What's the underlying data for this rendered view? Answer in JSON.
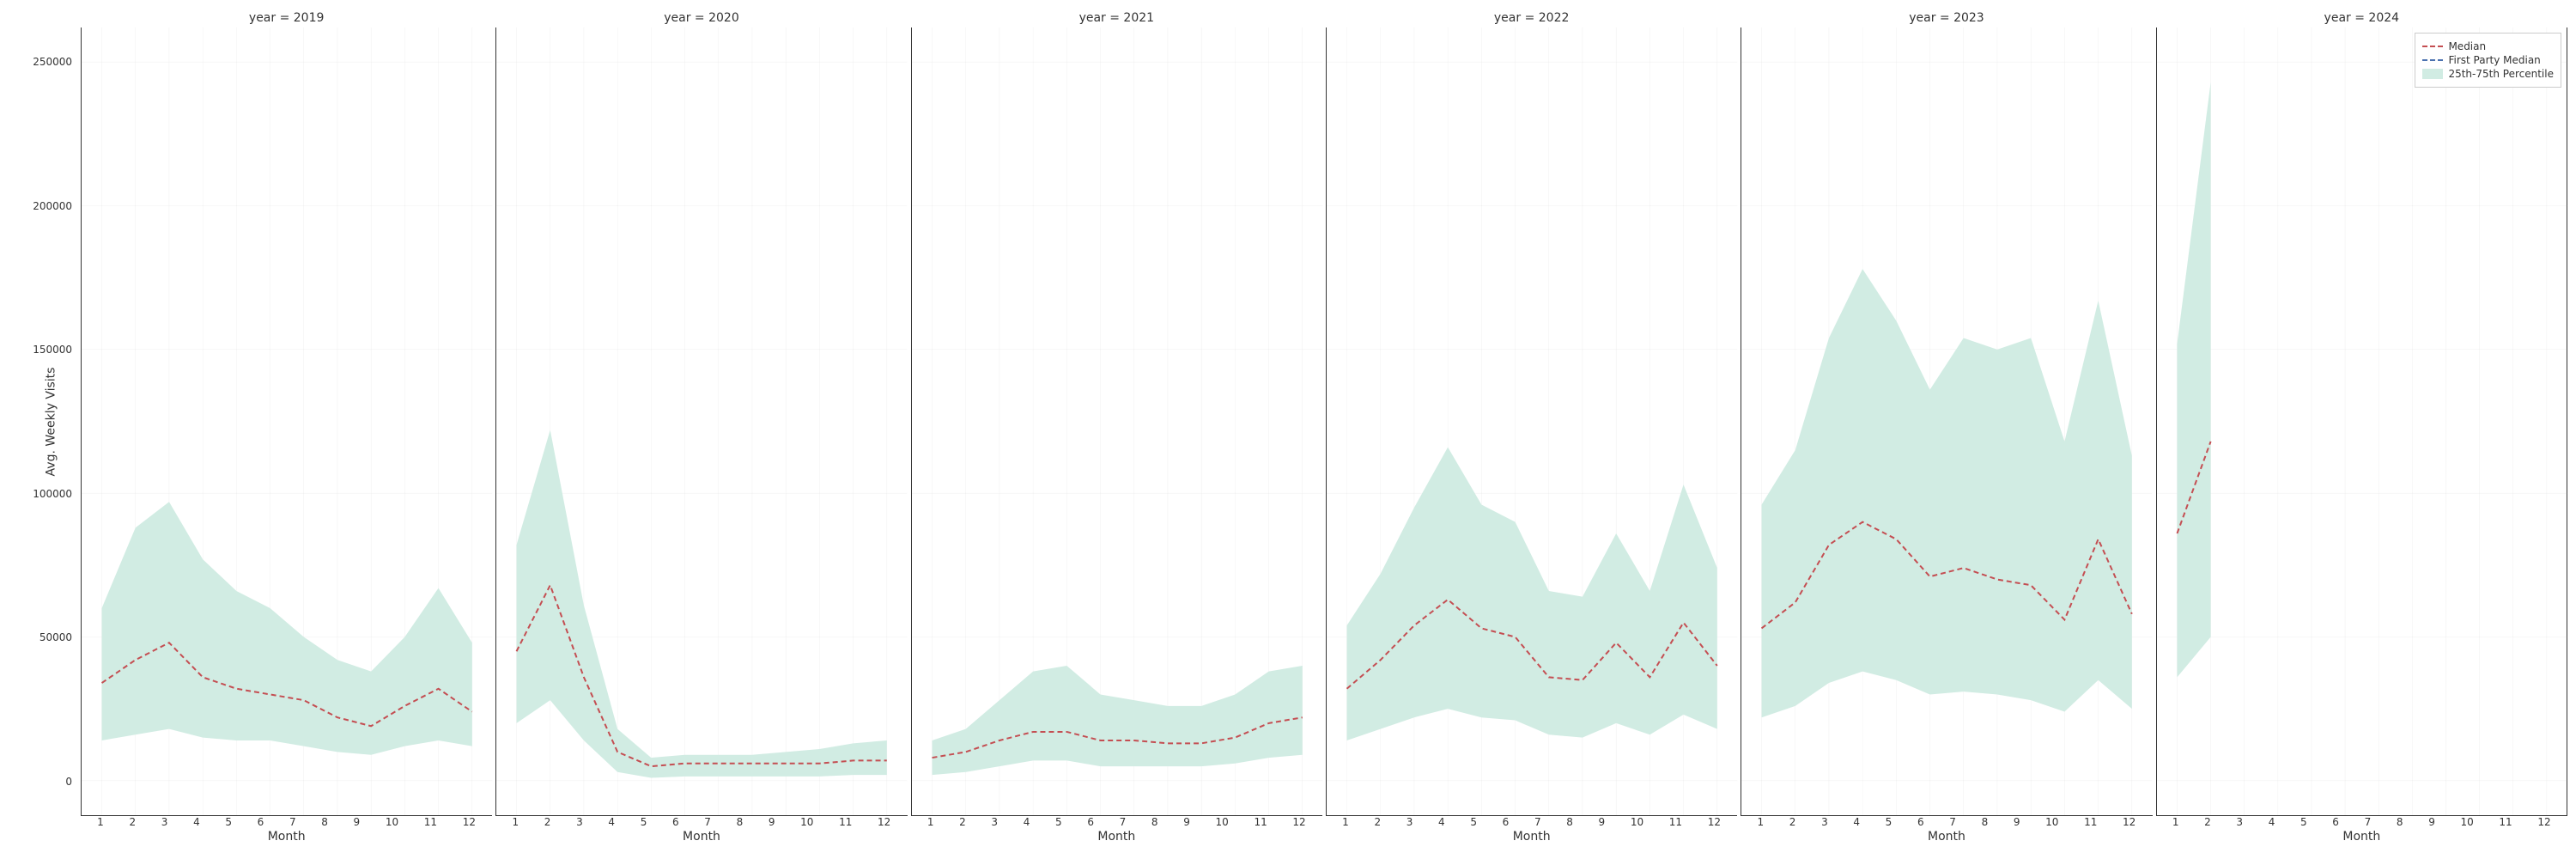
{
  "chart": {
    "type": "line-with-band-facets",
    "ylabel": "Avg. Weekly Visits",
    "xlabel": "Month",
    "ylim": [
      -12000,
      262000
    ],
    "yticks": [
      0,
      50000,
      100000,
      150000,
      200000,
      250000
    ],
    "xticks": [
      1,
      2,
      3,
      4,
      5,
      6,
      7,
      8,
      9,
      10,
      11,
      12
    ],
    "xlim": [
      0.4,
      12.6
    ],
    "background_color": "#ffffff",
    "grid_color": "#cccccc",
    "median_color": "#c44e52",
    "median_dash": "6,4",
    "median_width": 2,
    "fp_median_color": "#4c72b0",
    "band_fill": "#d1ece3",
    "band_opacity": 1,
    "title_fontsize": 14,
    "tick_fontsize": 12,
    "legend": {
      "items": [
        {
          "kind": "line",
          "label": "Median",
          "color": "#c44e52"
        },
        {
          "kind": "line",
          "label": "First Party Median",
          "color": "#4c72b0"
        },
        {
          "kind": "fill",
          "label": "25th-75th Percentile",
          "color": "#d1ece3"
        }
      ]
    },
    "panels": [
      {
        "title": "year = 2019",
        "median": [
          34000,
          42000,
          48000,
          36000,
          32000,
          30000,
          28000,
          22000,
          19000,
          26000,
          32000,
          24000
        ],
        "p25": [
          14000,
          16000,
          18000,
          15000,
          14000,
          14000,
          12000,
          10000,
          9000,
          12000,
          14000,
          12000
        ],
        "p75": [
          60000,
          88000,
          97000,
          77000,
          66000,
          60000,
          50000,
          42000,
          38000,
          50000,
          67000,
          48000
        ]
      },
      {
        "title": "year = 2020",
        "median": [
          45000,
          68000,
          36000,
          10000,
          5000,
          6000,
          6000,
          6000,
          6000,
          6000,
          7000,
          7000
        ],
        "p25": [
          20000,
          28000,
          14000,
          3000,
          1000,
          1500,
          1500,
          1500,
          1500,
          1500,
          2000,
          2000
        ],
        "p75": [
          82000,
          122000,
          61000,
          18000,
          8000,
          9000,
          9000,
          9000,
          10000,
          11000,
          13000,
          14000
        ]
      },
      {
        "title": "year = 2021",
        "median": [
          8000,
          10000,
          14000,
          17000,
          17000,
          14000,
          14000,
          13000,
          13000,
          15000,
          20000,
          22000
        ],
        "p25": [
          2000,
          3000,
          5000,
          7000,
          7000,
          5000,
          5000,
          5000,
          5000,
          6000,
          8000,
          9000
        ],
        "p75": [
          14000,
          18000,
          28000,
          38000,
          40000,
          30000,
          28000,
          26000,
          26000,
          30000,
          38000,
          40000
        ]
      },
      {
        "title": "year = 2022",
        "median": [
          32000,
          42000,
          54000,
          63000,
          53000,
          50000,
          36000,
          35000,
          48000,
          36000,
          55000,
          40000
        ],
        "p25": [
          14000,
          18000,
          22000,
          25000,
          22000,
          21000,
          16000,
          15000,
          20000,
          16000,
          23000,
          18000
        ],
        "p75": [
          54000,
          72000,
          95000,
          116000,
          96000,
          90000,
          66000,
          64000,
          86000,
          66000,
          103000,
          74000
        ]
      },
      {
        "title": "year = 2023",
        "median": [
          53000,
          62000,
          82000,
          90000,
          84000,
          71000,
          74000,
          70000,
          68000,
          56000,
          84000,
          58000
        ],
        "p25": [
          22000,
          26000,
          34000,
          38000,
          35000,
          30000,
          31000,
          30000,
          28000,
          24000,
          35000,
          25000
        ],
        "p75": [
          96000,
          115000,
          154000,
          178000,
          160000,
          136000,
          154000,
          150000,
          154000,
          118000,
          167000,
          113000
        ]
      },
      {
        "title": "year = 2024",
        "median": [
          86000,
          118000
        ],
        "p25": [
          36000,
          50000
        ],
        "p75": [
          152000,
          243000
        ]
      }
    ]
  }
}
